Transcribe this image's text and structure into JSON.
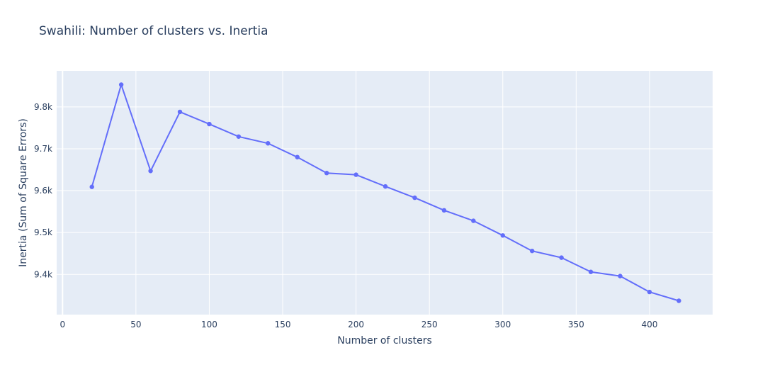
{
  "chart_data": {
    "type": "line",
    "title": "Swahili: Number of clusters vs. Inertia",
    "xlabel": "Number of clusters",
    "ylabel": "Inertia (Sum of Square Errors)",
    "xlim": [
      -4,
      443
    ],
    "ylim": [
      9304,
      9886
    ],
    "x_ticks": [
      0,
      50,
      100,
      150,
      200,
      250,
      300,
      350,
      400
    ],
    "x_tick_labels": [
      "0",
      "50",
      "100",
      "150",
      "200",
      "250",
      "300",
      "350",
      "400"
    ],
    "y_ticks": [
      9400,
      9500,
      9600,
      9700,
      9800
    ],
    "y_tick_labels": [
      "9.4k",
      "9.5k",
      "9.6k",
      "9.7k",
      "9.8k"
    ],
    "grid": true,
    "colors": {
      "plot_background": "#e5ecf6",
      "grid": "#ffffff",
      "series": "#636efa",
      "text": "#2a3f5f"
    },
    "series": [
      {
        "mode": "lines+markers",
        "x": [
          20,
          40,
          60,
          80,
          100,
          120,
          140,
          160,
          180,
          200,
          220,
          240,
          260,
          280,
          300,
          320,
          340,
          360,
          380,
          400,
          420
        ],
        "y": [
          9609,
          9853,
          9647,
          9788,
          9759,
          9729,
          9713,
          9680,
          9642,
          9638,
          9610,
          9583,
          9553,
          9528,
          9493,
          9456,
          9440,
          9406,
          9396,
          9358,
          9337
        ]
      }
    ]
  }
}
